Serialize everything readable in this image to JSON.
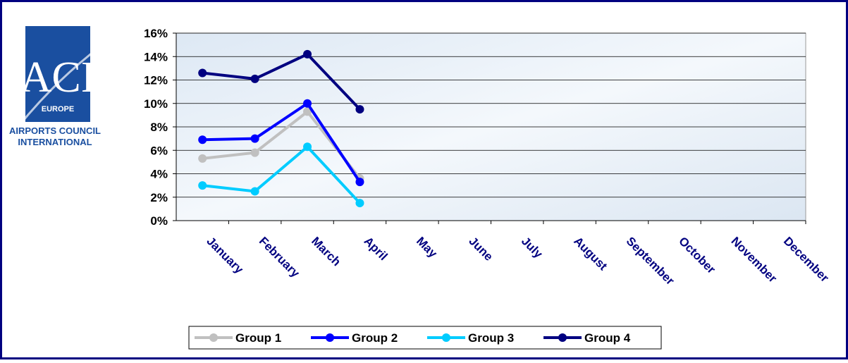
{
  "logo": {
    "name": "ACI",
    "region": "EUROPE",
    "line1": "AIRPORTS COUNCIL",
    "line2": "INTERNATIONAL"
  },
  "chart_data": {
    "type": "line",
    "categories": [
      "January",
      "February",
      "March",
      "April",
      "May",
      "June",
      "July",
      "August",
      "September",
      "October",
      "November",
      "December"
    ],
    "series": [
      {
        "name": "Group 1",
        "color": "#c0c0c0",
        "values": [
          5.3,
          5.8,
          9.3,
          3.6,
          null,
          null,
          null,
          null,
          null,
          null,
          null,
          null
        ]
      },
      {
        "name": "Group 2",
        "color": "#0000ff",
        "values": [
          6.9,
          7.0,
          10.0,
          3.3,
          null,
          null,
          null,
          null,
          null,
          null,
          null,
          null
        ]
      },
      {
        "name": "Group 3",
        "color": "#00ccff",
        "values": [
          3.0,
          2.5,
          6.3,
          1.5,
          null,
          null,
          null,
          null,
          null,
          null,
          null,
          null
        ]
      },
      {
        "name": "Group 4",
        "color": "#000080",
        "values": [
          12.6,
          12.1,
          14.2,
          9.5,
          null,
          null,
          null,
          null,
          null,
          null,
          null,
          null
        ]
      }
    ],
    "ylim": [
      0,
      16
    ],
    "yticks": [
      {
        "value": 0,
        "label": "0%"
      },
      {
        "value": 2,
        "label": "2%"
      },
      {
        "value": 4,
        "label": "4%"
      },
      {
        "value": 6,
        "label": "6%"
      },
      {
        "value": 8,
        "label": "8%"
      },
      {
        "value": 10,
        "label": "10%"
      },
      {
        "value": 12,
        "label": "12%"
      },
      {
        "value": 14,
        "label": "14%"
      },
      {
        "value": 16,
        "label": "16%"
      }
    ],
    "grid": true,
    "legend": "bottom"
  }
}
